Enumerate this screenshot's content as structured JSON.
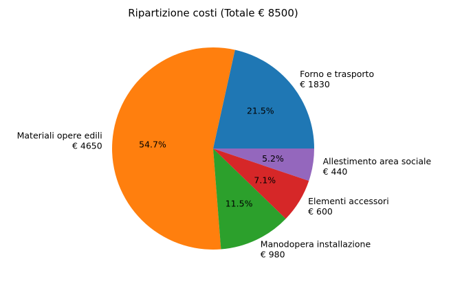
{
  "chart_data": {
    "type": "pie",
    "title": "Ripartizione costi (Totale € 8500)",
    "slices": [
      {
        "label": "Forno e trasporto",
        "value_label": "€ 1830",
        "value": 1830,
        "percent": 21.5,
        "percent_label": "21.5%",
        "color": "#1f77b4"
      },
      {
        "label": "Materiali opere edili",
        "value_label": "€ 4650",
        "value": 4650,
        "percent": 54.7,
        "percent_label": "54.7%",
        "color": "#ff7f0e"
      },
      {
        "label": "Manodopera installazione",
        "value_label": "€ 980",
        "value": 980,
        "percent": 11.5,
        "percent_label": "11.5%",
        "color": "#2ca02c"
      },
      {
        "label": "Elementi accessori",
        "value_label": "€ 600",
        "value": 600,
        "percent": 7.1,
        "percent_label": "7.1%",
        "color": "#d62728"
      },
      {
        "label": "Allestimento area sociale",
        "value_label": "€ 440",
        "value": 440,
        "percent": 5.2,
        "percent_label": "5.2%",
        "color": "#9467bd"
      }
    ],
    "start_angle": "0 degrees (3 o'clock), counter-clockwise",
    "legend": "none"
  }
}
